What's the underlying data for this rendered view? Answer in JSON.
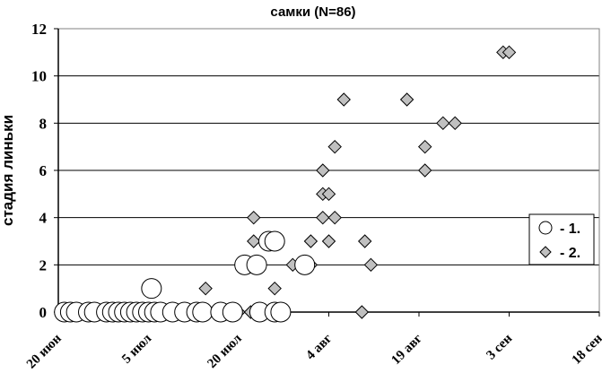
{
  "chart_data": {
    "type": "scatter",
    "title": "самки (N=86)",
    "ylabel": "стадия линьки",
    "xlabel": "",
    "ylim": [
      0,
      12
    ],
    "yticks": [
      0,
      2,
      4,
      6,
      8,
      10,
      12
    ],
    "xlim": [
      0,
      90
    ],
    "xticks": [
      {
        "day": 0,
        "label": "20 июн"
      },
      {
        "day": 15,
        "label": "5 июл"
      },
      {
        "day": 30,
        "label": "20 июл"
      },
      {
        "day": 45,
        "label": "4 авг"
      },
      {
        "day": 60,
        "label": "19 авг"
      },
      {
        "day": 75,
        "label": "3 сен"
      },
      {
        "day": 90,
        "label": "18 сен"
      }
    ],
    "grid": "horizontal",
    "legend_position": "right",
    "series": [
      {
        "name": "- 1.",
        "marker": "circle",
        "color": "#ffffff",
        "points": [
          [
            1,
            0
          ],
          [
            2,
            0
          ],
          [
            3,
            0
          ],
          [
            5,
            0
          ],
          [
            6,
            0
          ],
          [
            8,
            0
          ],
          [
            9,
            0
          ],
          [
            10,
            0
          ],
          [
            11,
            0
          ],
          [
            12,
            0
          ],
          [
            13,
            0
          ],
          [
            14,
            0
          ],
          [
            15,
            0
          ],
          [
            15.5,
            1
          ],
          [
            16,
            0
          ],
          [
            17,
            0
          ],
          [
            19,
            0
          ],
          [
            21,
            0
          ],
          [
            23,
            0
          ],
          [
            24,
            0
          ],
          [
            27,
            0
          ],
          [
            29,
            0
          ],
          [
            31,
            2
          ],
          [
            33,
            2
          ],
          [
            33.5,
            0
          ],
          [
            35,
            3
          ],
          [
            36,
            3
          ],
          [
            36,
            0
          ],
          [
            37,
            0
          ],
          [
            41,
            2
          ]
        ]
      },
      {
        "name": "- 2.",
        "marker": "diamond",
        "color": "#c0c0c0",
        "points": [
          [
            1,
            0
          ],
          [
            2,
            0
          ],
          [
            6,
            0
          ],
          [
            8,
            0
          ],
          [
            9,
            0
          ],
          [
            10,
            0
          ],
          [
            11,
            0
          ],
          [
            12,
            0
          ],
          [
            13,
            0
          ],
          [
            14,
            0
          ],
          [
            16,
            0
          ],
          [
            18,
            0
          ],
          [
            22,
            0
          ],
          [
            24,
            0
          ],
          [
            24.5,
            1
          ],
          [
            28,
            0
          ],
          [
            30,
            0
          ],
          [
            32,
            0
          ],
          [
            32.5,
            4
          ],
          [
            32.5,
            3
          ],
          [
            36,
            1
          ],
          [
            37,
            0
          ],
          [
            39,
            2
          ],
          [
            41,
            2
          ],
          [
            42,
            2
          ],
          [
            42,
            3
          ],
          [
            44,
            5
          ],
          [
            44,
            4
          ],
          [
            44,
            6
          ],
          [
            45,
            3
          ],
          [
            45,
            5
          ],
          [
            46,
            4
          ],
          [
            46,
            7
          ],
          [
            47.5,
            9
          ],
          [
            50.5,
            0
          ],
          [
            51,
            3
          ],
          [
            52,
            2
          ],
          [
            58,
            9
          ],
          [
            61,
            7
          ],
          [
            61,
            6
          ],
          [
            64,
            8
          ],
          [
            66,
            8
          ],
          [
            74,
            11
          ],
          [
            75,
            11
          ]
        ]
      }
    ]
  }
}
